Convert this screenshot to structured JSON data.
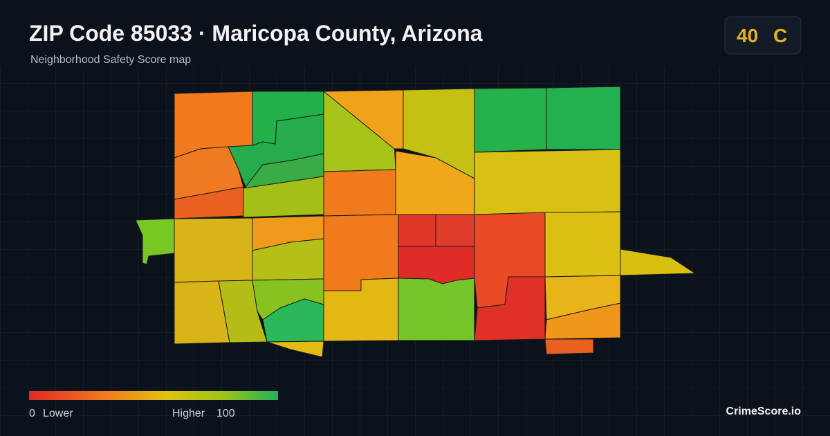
{
  "header": {
    "title": "ZIP Code 85033 · Maricopa County, Arizona",
    "subtitle": "Neighborhood Safety Score map"
  },
  "badge": {
    "score": 40,
    "grade": "C"
  },
  "legend": {
    "min": 0,
    "min_label": "Lower",
    "max_label": "Higher",
    "max": 100
  },
  "footer": {
    "brand": "CrimeScore.io"
  }
}
